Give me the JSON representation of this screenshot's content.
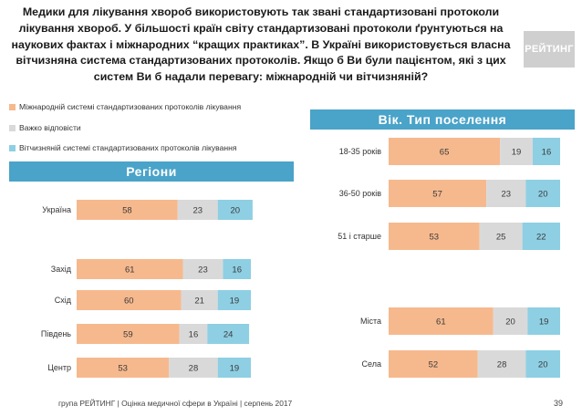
{
  "title_lines": [
    "Медики для лікування хвороб використовують так звані стандартизовані протоколи",
    "лікування хвороб. У більшості країн світу стандартизовані протоколи ґрунтуються на",
    "наукових фактах і міжнародних “кращих практиках”. В Україні використовується власна",
    "вітчизняна система стандартизованих протоколів. Якщо б Ви були пацієнтом, які з цих",
    "систем Ви б надали перевагу: міжнародній чи вітчизняній?"
  ],
  "logo_text": "РЕЙТИНГ",
  "legend": [
    {
      "label": "Міжнародній системі стандартизованих протоколів лікування",
      "color": "#f6b98e"
    },
    {
      "label": "Важко відповісти",
      "color": "#d9d9d9"
    },
    {
      "label": "Вітчизняній системі стандартизованих протоколів лікування",
      "color": "#8ecfe3"
    }
  ],
  "banner_regions": "Регіони",
  "banner_age": "Вік. Тип поселення",
  "footer": "група РЕЙТИНГ  |  Оцінка медичної сфери в Україні  |  серпень 2017",
  "page_number": "39",
  "chart_data": [
    {
      "type": "bar",
      "orientation": "horizontal",
      "stacked": true,
      "title": "Регіони",
      "categories": [
        "Україна",
        "",
        "Захід",
        "Схід",
        "Південь",
        "Центр"
      ],
      "series": [
        {
          "name": "Міжнародній системі стандартизованих протоколів лікування",
          "color": "#f6b98e",
          "values": [
            58,
            null,
            61,
            60,
            59,
            53
          ]
        },
        {
          "name": "Важко відповісти",
          "color": "#d9d9d9",
          "values": [
            23,
            null,
            23,
            21,
            16,
            28
          ]
        },
        {
          "name": "Вітчизняній системі стандартизованих протоколів лікування",
          "color": "#8ecfe3",
          "values": [
            20,
            null,
            16,
            19,
            24,
            19
          ]
        }
      ],
      "xlim": [
        0,
        100
      ]
    },
    {
      "type": "bar",
      "orientation": "horizontal",
      "stacked": true,
      "title": "Вік. Тип поселення",
      "categories": [
        "18-35 років",
        "36-50 років",
        "51 і старше",
        "",
        "Міста",
        "Села"
      ],
      "series": [
        {
          "name": "Міжнародній системі стандартизованих протоколів лікування",
          "color": "#f6b98e",
          "values": [
            65,
            57,
            53,
            null,
            61,
            52
          ]
        },
        {
          "name": "Важко відповісти",
          "color": "#d9d9d9",
          "values": [
            19,
            23,
            25,
            null,
            20,
            28
          ]
        },
        {
          "name": "Вітчизняній системі стандартизованих протоколів лікування",
          "color": "#8ecfe3",
          "values": [
            16,
            20,
            22,
            null,
            19,
            20
          ]
        }
      ],
      "xlim": [
        0,
        100
      ]
    }
  ]
}
